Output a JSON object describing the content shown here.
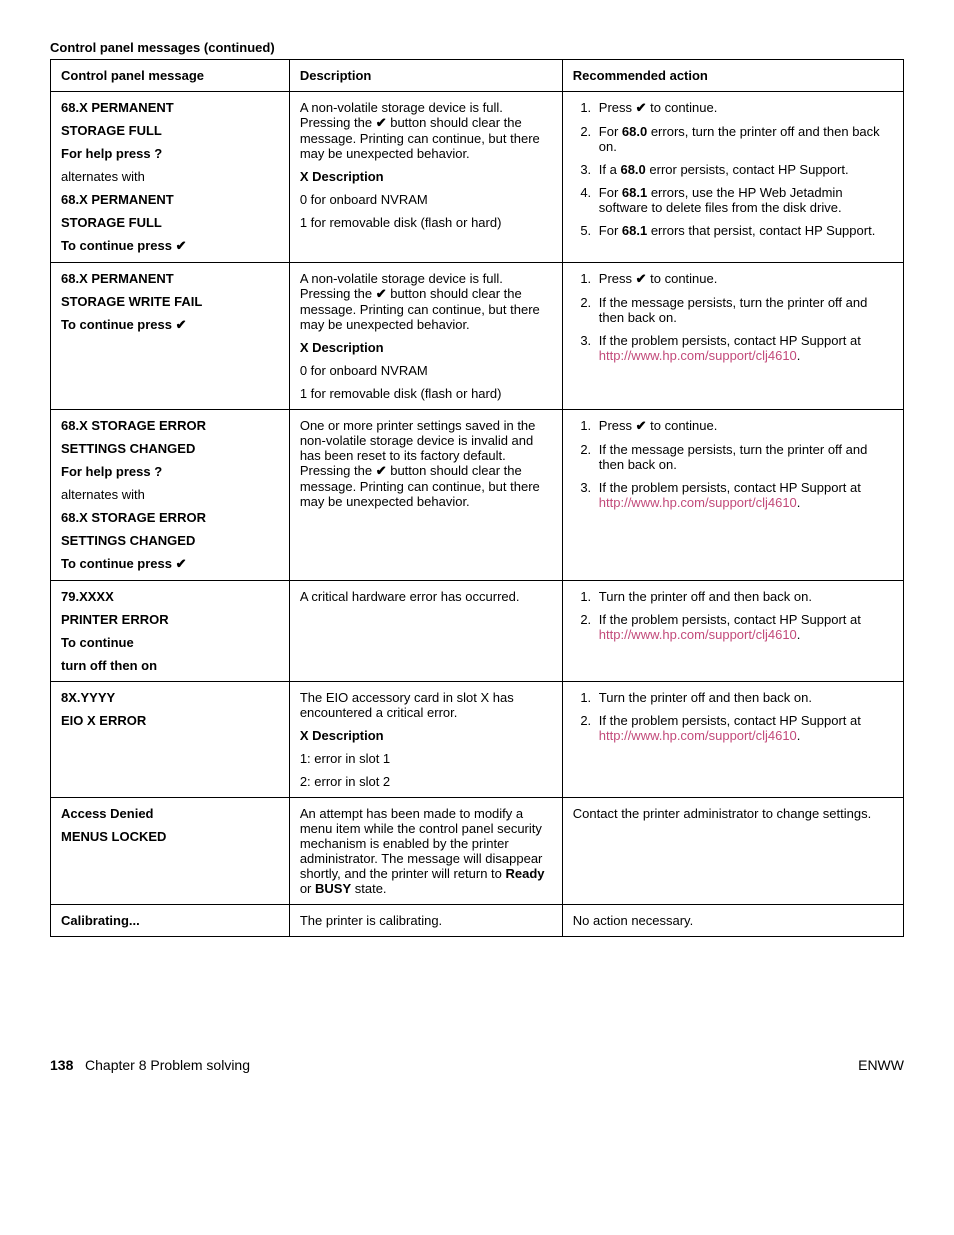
{
  "caption": "Control panel messages (continued)",
  "headers": {
    "c1": "Control panel message",
    "c2": "Description",
    "c3": "Recommended action"
  },
  "checkGlyph": "✔",
  "helpGlyph": "?",
  "link": {
    "a": "http://www.hp.com/",
    "b": "support/clj4610"
  },
  "rows": {
    "r1": {
      "m1": "68.X PERMANENT",
      "m2": "STORAGE FULL",
      "m3a": "For help press ",
      "m4": "alternates with",
      "m5": "68.X PERMANENT",
      "m6": "STORAGE FULL",
      "m7a": "To continue press ",
      "d1": "A non-volatile storage device is full. Pressing the ",
      "d1b": " button should clear the message. Printing can continue, but there may be unexpected behavior.",
      "d2": "X Description",
      "d3": "0 for onboard NVRAM",
      "d4": "1 for removable disk (flash or hard)",
      "a1a": "Press ",
      "a1b": " to continue.",
      "a2a": "For ",
      "a2b": "68.0",
      "a2c": " errors, turn the printer off and then back on.",
      "a3a": "If a ",
      "a3b": "68.0",
      "a3c": " error persists, contact HP Support.",
      "a4a": "For ",
      "a4b": "68.1",
      "a4c": " errors, use the HP Web Jetadmin software to delete files from the disk drive.",
      "a5a": "For ",
      "a5b": "68.1",
      "a5c": " errors that persist, contact HP Support."
    },
    "r2": {
      "m1": "68.X PERMANENT",
      "m2": "STORAGE WRITE FAIL",
      "m3a": "To continue press ",
      "d1": "A non-volatile storage device is full. Pressing the ",
      "d1b": " button should clear the message. Printing can continue, but there may be unexpected behavior.",
      "d2": "X Description",
      "d3": "0 for onboard NVRAM",
      "d4": "1 for removable disk (flash or hard)",
      "a1a": "Press ",
      "a1b": " to continue.",
      "a2": "If the message persists, turn the printer off and then back on.",
      "a3a": "If the problem persists, contact HP Support at "
    },
    "r3": {
      "m1": "68.X STORAGE ERROR",
      "m2": "SETTINGS CHANGED",
      "m3a": "For help press ",
      "m4": "alternates with",
      "m5": "68.X STORAGE ERROR",
      "m6": "SETTINGS CHANGED",
      "m7a": "To continue press ",
      "d1": "One or more printer settings saved in the non-volatile storage device is invalid and has been reset to its factory default. Pressing the ",
      "d1b": " button should clear the message. Printing can continue, but there may be unexpected behavior.",
      "a1a": "Press ",
      "a1b": " to continue.",
      "a2": "If the message persists, turn the printer off and then back on.",
      "a3a": "If the problem persists, contact HP Support at "
    },
    "r4": {
      "m1": "79.XXXX",
      "m2": "PRINTER ERROR",
      "m3": "To continue",
      "m4": "turn off then on",
      "d1": "A critical hardware error has occurred.",
      "a1": "Turn the printer off and then back on.",
      "a2a": "If the problem persists, contact HP Support at "
    },
    "r5": {
      "m1": "8X.YYYY",
      "m2": "EIO X ERROR",
      "d1": "The EIO accessory card in slot X has encountered a critical error.",
      "d2": "X Description",
      "d3": "1: error in slot 1",
      "d4": "2: error in slot 2",
      "a1": "Turn the printer off and then back on.",
      "a2a": "If the problem persists, contact HP Support at "
    },
    "r6": {
      "m1": "Access Denied",
      "m2": "MENUS LOCKED",
      "d1a": "An attempt has been made to modify a menu item while the control panel security mechanism is enabled by the printer administrator. The message will disappear shortly, and the printer will return to ",
      "d1b": "Ready",
      "d1c": " or ",
      "d1d": "BUSY",
      "d1e": " state.",
      "a1": "Contact the printer administrator to change settings."
    },
    "r7": {
      "m1": "Calibrating...",
      "d1": "The printer is calibrating.",
      "a1": "No action necessary."
    }
  },
  "footer": {
    "pageNum": "138",
    "chapter": "Chapter 8  Problem solving",
    "right": "ENWW"
  }
}
